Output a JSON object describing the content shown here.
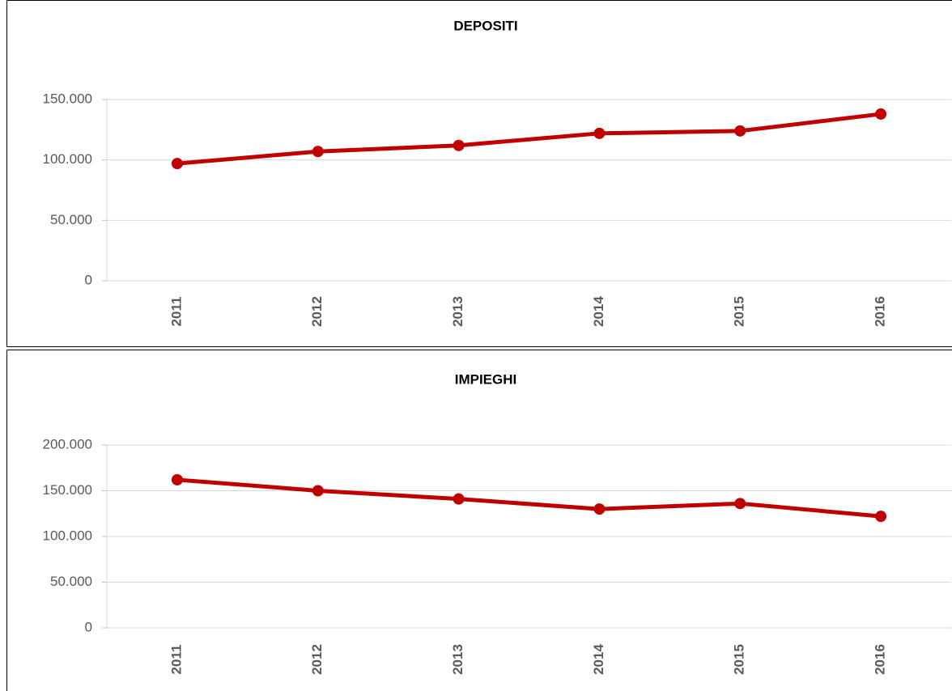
{
  "chart_data": [
    {
      "type": "line",
      "title": "DEPOSITI",
      "categories": [
        "2011",
        "2012",
        "2013",
        "2014",
        "2015",
        "2016"
      ],
      "series": [
        {
          "color": "#c00000",
          "values": [
            97000,
            107000,
            112000,
            122000,
            124000,
            138000
          ]
        }
      ],
      "ylim": [
        0,
        150000
      ],
      "yticks": [
        0,
        {
          "value": 50000,
          "label": "50.000"
        },
        {
          "value": 100000,
          "label": "100.000"
        },
        {
          "value": 150000,
          "label": "150.000"
        }
      ],
      "grid": true
    },
    {
      "type": "line",
      "title": "IMPIEGHI",
      "categories": [
        "2011",
        "2012",
        "2013",
        "2014",
        "2015",
        "2016"
      ],
      "series": [
        {
          "color": "#c00000",
          "values": [
            162000,
            150000,
            141000,
            130000,
            136000,
            122000
          ]
        }
      ],
      "ylim": [
        0,
        200000
      ],
      "yticks": [
        0,
        {
          "value": 50000,
          "label": "50.000"
        },
        {
          "value": 100000,
          "label": "100.000"
        },
        {
          "value": 150000,
          "label": "150.000"
        },
        {
          "value": 200000,
          "label": "200.000"
        }
      ],
      "grid": true
    }
  ]
}
